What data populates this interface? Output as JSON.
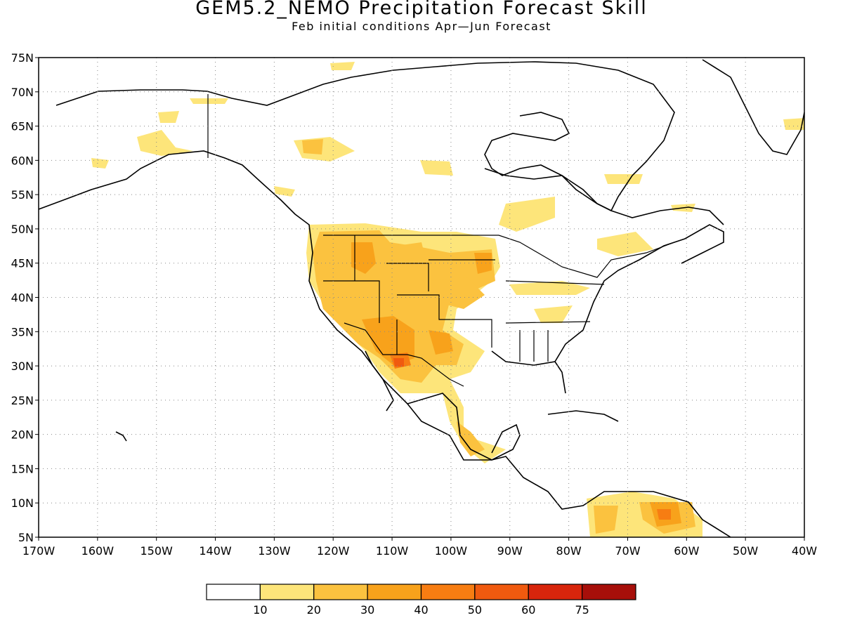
{
  "title": "GEM5.2_NEMO Precipitation Forecast Skill",
  "subtitle": "Feb initial conditions  Apr—Jun Forecast",
  "map": {
    "lat_labels": [
      "75N",
      "70N",
      "65N",
      "60N",
      "55N",
      "50N",
      "45N",
      "40N",
      "35N",
      "30N",
      "25N",
      "20N",
      "15N",
      "10N",
      "5N"
    ],
    "lon_labels": [
      "170W",
      "160W",
      "150W",
      "140W",
      "130W",
      "120W",
      "110W",
      "100W",
      "90W",
      "80W",
      "70W",
      "60W",
      "50W",
      "40W"
    ],
    "lon_range": [
      -170,
      -40
    ],
    "lat_range": [
      5,
      75
    ],
    "grid": "dotted"
  },
  "colorbar": {
    "levels": [
      "10",
      "20",
      "30",
      "40",
      "50",
      "60",
      "75"
    ],
    "colors": [
      "#ffffff",
      "#fde57a",
      "#fbc23f",
      "#f8a21b",
      "#f77d12",
      "#f05a0f",
      "#d8250c",
      "#a70f0a"
    ]
  }
}
